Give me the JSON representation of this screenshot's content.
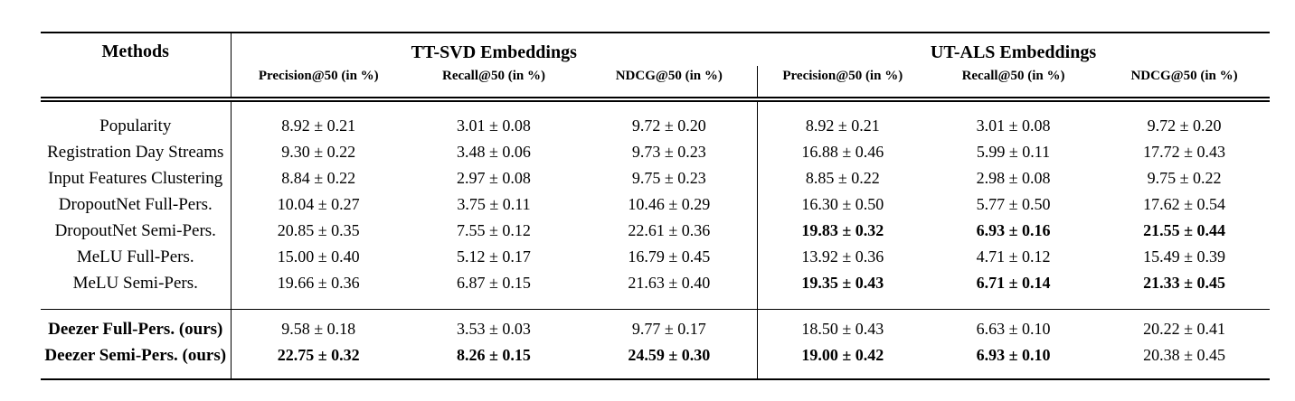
{
  "page": {
    "background_color": "#ffffff",
    "text_color": "#000000",
    "rule_color": "#000000"
  },
  "table": {
    "methods_header": "Methods",
    "groups": [
      {
        "label": "TT-SVD Embeddings",
        "columns": [
          "Precision@50 (in %)",
          "Recall@50 (in %)",
          "NDCG@50 (in %)"
        ]
      },
      {
        "label": "UT-ALS Embeddings",
        "columns": [
          "Precision@50 (in %)",
          "Recall@50 (in %)",
          "NDCG@50 (in %)"
        ]
      }
    ],
    "sections": [
      {
        "name": "baselines",
        "rows": [
          {
            "method": "Popularity",
            "method_bold": false,
            "cells": [
              {
                "text": "8.92 ± 0.21",
                "bold": false
              },
              {
                "text": "3.01 ± 0.08",
                "bold": false
              },
              {
                "text": "9.72 ± 0.20",
                "bold": false
              },
              {
                "text": "8.92 ± 0.21",
                "bold": false
              },
              {
                "text": "3.01 ± 0.08",
                "bold": false
              },
              {
                "text": "9.72 ± 0.20",
                "bold": false
              }
            ]
          },
          {
            "method": "Registration Day Streams",
            "method_bold": false,
            "cells": [
              {
                "text": "9.30 ± 0.22",
                "bold": false
              },
              {
                "text": "3.48 ± 0.06",
                "bold": false
              },
              {
                "text": "9.73 ± 0.23",
                "bold": false
              },
              {
                "text": "16.88 ± 0.46",
                "bold": false
              },
              {
                "text": "5.99 ± 0.11",
                "bold": false
              },
              {
                "text": "17.72 ± 0.43",
                "bold": false
              }
            ]
          },
          {
            "method": "Input Features Clustering",
            "method_bold": false,
            "cells": [
              {
                "text": "8.84 ± 0.22",
                "bold": false
              },
              {
                "text": "2.97 ± 0.08",
                "bold": false
              },
              {
                "text": "9.75 ± 0.23",
                "bold": false
              },
              {
                "text": "8.85 ± 0.22",
                "bold": false
              },
              {
                "text": "2.98 ± 0.08",
                "bold": false
              },
              {
                "text": "9.75 ± 0.22",
                "bold": false
              }
            ]
          },
          {
            "method": "DropoutNet Full-Pers.",
            "method_bold": false,
            "cells": [
              {
                "text": "10.04 ± 0.27",
                "bold": false
              },
              {
                "text": "3.75 ± 0.11",
                "bold": false
              },
              {
                "text": "10.46 ± 0.29",
                "bold": false
              },
              {
                "text": "16.30 ± 0.50",
                "bold": false
              },
              {
                "text": "5.77 ± 0.50",
                "bold": false
              },
              {
                "text": "17.62 ± 0.54",
                "bold": false
              }
            ]
          },
          {
            "method": "DropoutNet Semi-Pers.",
            "method_bold": false,
            "cells": [
              {
                "text": "20.85 ± 0.35",
                "bold": false
              },
              {
                "text": "7.55 ± 0.12",
                "bold": false
              },
              {
                "text": "22.61 ± 0.36",
                "bold": false
              },
              {
                "text": "19.83 ± 0.32",
                "bold": true
              },
              {
                "text": "6.93 ± 0.16",
                "bold": true
              },
              {
                "text": "21.55 ± 0.44",
                "bold": true
              }
            ]
          },
          {
            "method": "MeLU Full-Pers.",
            "method_bold": false,
            "cells": [
              {
                "text": "15.00 ± 0.40",
                "bold": false
              },
              {
                "text": "5.12 ± 0.17",
                "bold": false
              },
              {
                "text": "16.79 ± 0.45",
                "bold": false
              },
              {
                "text": "13.92 ± 0.36",
                "bold": false
              },
              {
                "text": "4.71 ± 0.12",
                "bold": false
              },
              {
                "text": "15.49 ± 0.39",
                "bold": false
              }
            ]
          },
          {
            "method": "MeLU Semi-Pers.",
            "method_bold": false,
            "cells": [
              {
                "text": "19.66 ± 0.36",
                "bold": false
              },
              {
                "text": "6.87 ± 0.15",
                "bold": false
              },
              {
                "text": "21.63 ± 0.40",
                "bold": false
              },
              {
                "text": "19.35 ± 0.43",
                "bold": true
              },
              {
                "text": "6.71 ± 0.14",
                "bold": true
              },
              {
                "text": "21.33 ± 0.45",
                "bold": true
              }
            ]
          }
        ]
      },
      {
        "name": "ours",
        "rows": [
          {
            "method": "Deezer Full-Pers. (ours)",
            "method_bold": true,
            "cells": [
              {
                "text": "9.58 ± 0.18",
                "bold": false
              },
              {
                "text": "3.53 ± 0.03",
                "bold": false
              },
              {
                "text": "9.77 ± 0.17",
                "bold": false
              },
              {
                "text": "18.50 ± 0.43",
                "bold": false
              },
              {
                "text": "6.63 ± 0.10",
                "bold": false
              },
              {
                "text": "20.22 ± 0.41",
                "bold": false
              }
            ]
          },
          {
            "method": "Deezer Semi-Pers. (ours)",
            "method_bold": true,
            "cells": [
              {
                "text": "22.75 ± 0.32",
                "bold": true
              },
              {
                "text": "8.26 ± 0.15",
                "bold": true
              },
              {
                "text": "24.59 ± 0.30",
                "bold": true
              },
              {
                "text": "19.00 ± 0.42",
                "bold": true
              },
              {
                "text": "6.93 ± 0.10",
                "bold": true
              },
              {
                "text": "20.38 ± 0.45",
                "bold": false
              }
            ]
          }
        ]
      }
    ]
  }
}
